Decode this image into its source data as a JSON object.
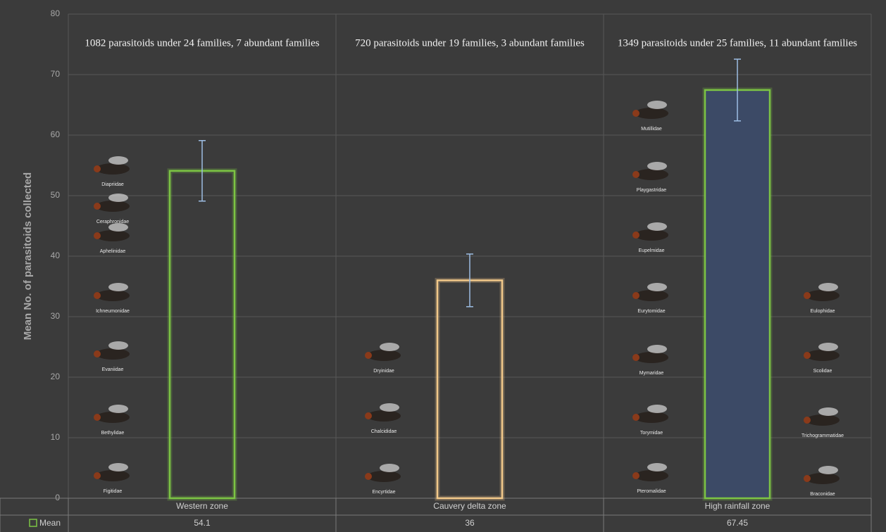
{
  "chart_data": {
    "type": "bar",
    "y_label": "Mean No. of parasitoids collected",
    "categories": [
      "Western zone",
      "Cauvery delta zone",
      "High rainfall zone"
    ],
    "annotations": [
      "1082 parasitoids under 24 families, 7 abundant families",
      "720  parasitoids under 19 families, 3 abundant families",
      "1349 parasitoids under 25 families, 11 abundant families"
    ],
    "series": [
      {
        "name": "Mean",
        "color": "#7cc444",
        "values": [
          54.1,
          36,
          67.45
        ],
        "errors": [
          5,
          4.35,
          5.1
        ],
        "colors": [
          "#7cc444",
          "#f2c98a",
          "#7cc444"
        ],
        "fills": [
          "none",
          "none",
          "#3c4a66"
        ]
      }
    ],
    "error_color": "#9dbde3",
    "families": [
      [
        "Diapriidae",
        "Ceraphronidae",
        "Aphelinidae",
        "Ichneumonidae",
        "Evaniidae",
        "Bethylidae",
        "Figitidae"
      ],
      [
        "Dryinidae",
        "Chalcididae",
        "Encyrtidae"
      ],
      [
        "Mutillidae",
        "Playgastridae",
        "Eupelmidae",
        "Eurytomidae",
        "Mymaridae",
        "Torymidae",
        "Pteromalidae"
      ],
      [
        "Eulophidae",
        "Scolidae",
        "Trichogrammatidae",
        "Braconidae"
      ]
    ],
    "ylim": [
      0,
      80
    ],
    "yticks": [
      0,
      10,
      20,
      30,
      40,
      50,
      60,
      70,
      80
    ],
    "grid": true
  }
}
